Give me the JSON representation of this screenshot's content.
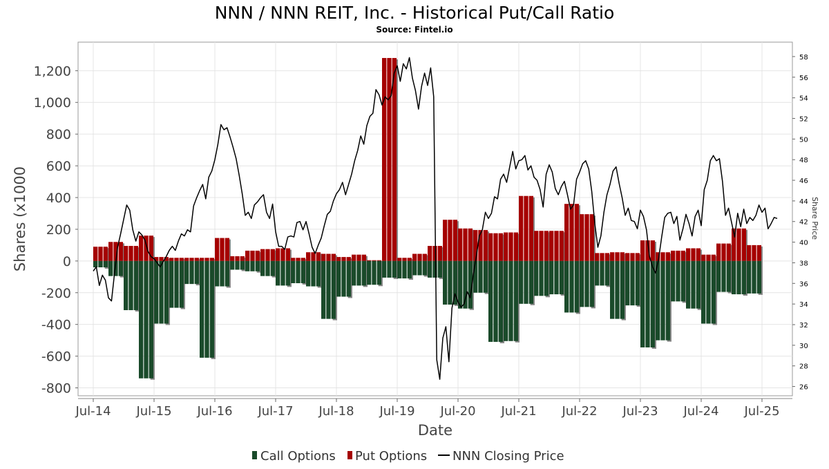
{
  "chart_data": {
    "type": "bar",
    "title": "NNN / NNN REIT, Inc. - Historical Put/Call Ratio",
    "subtitle": "Source: Fintel.io",
    "xlabel": "Date",
    "ylabel": "Shares (x1000",
    "y2label": "Share Price",
    "ylim": [
      -850,
      1380
    ],
    "y2lim": [
      25.1,
      59.4
    ],
    "xlim": [
      2014.25,
      2026.0
    ],
    "yticks": [
      "1,200",
      "1,000",
      "800",
      "600",
      "400",
      "200",
      "0",
      "-200",
      "-400",
      "-600",
      "-800"
    ],
    "ytick_values": [
      1200,
      1000,
      800,
      600,
      400,
      200,
      0,
      -200,
      -400,
      -600,
      -800
    ],
    "y2ticks": [
      "58",
      "56",
      "54",
      "52",
      "50",
      "48",
      "46",
      "44",
      "42",
      "40",
      "38",
      "36",
      "34",
      "32",
      "30",
      "28",
      "26"
    ],
    "y2tick_values": [
      58,
      56,
      54,
      52,
      50,
      48,
      46,
      44,
      42,
      40,
      38,
      36,
      34,
      32,
      30,
      28,
      26
    ],
    "xticks": [
      "Jul-14",
      "Jul-15",
      "Jul-16",
      "Jul-17",
      "Jul-18",
      "Jul-19",
      "Jul-20",
      "Jul-21",
      "Jul-22",
      "Jul-23",
      "Jul-24",
      "Jul-25"
    ],
    "xtick_values": [
      2014.5,
      2015.5,
      2016.5,
      2017.5,
      2018.5,
      2019.5,
      2020.5,
      2021.5,
      2022.5,
      2023.5,
      2024.5,
      2025.5
    ],
    "grid": true,
    "legend_position": "bottom",
    "colors": {
      "call": "#1a4a2a",
      "put": "#a50000",
      "price": "#000000",
      "shadow": "#888888"
    },
    "series": [
      {
        "name": "Call Options",
        "key": "call"
      },
      {
        "name": "Put Options",
        "key": "put"
      },
      {
        "name": "NNN Closing Price",
        "key": "price"
      }
    ],
    "option_periods": [
      {
        "start": 2014.5,
        "end": 2014.75,
        "put": 90,
        "call": -40
      },
      {
        "start": 2014.75,
        "end": 2015.0,
        "put": 120,
        "call": -95
      },
      {
        "start": 2015.0,
        "end": 2015.25,
        "put": 95,
        "call": -310
      },
      {
        "start": 2015.25,
        "end": 2015.5,
        "put": 160,
        "call": -740
      },
      {
        "start": 2015.5,
        "end": 2015.75,
        "put": 25,
        "call": -395
      },
      {
        "start": 2015.75,
        "end": 2016.0,
        "put": 20,
        "call": -295
      },
      {
        "start": 2016.0,
        "end": 2016.25,
        "put": 20,
        "call": -145
      },
      {
        "start": 2016.25,
        "end": 2016.5,
        "put": 20,
        "call": -610
      },
      {
        "start": 2016.5,
        "end": 2016.75,
        "put": 145,
        "call": -160
      },
      {
        "start": 2016.75,
        "end": 2017.0,
        "put": 30,
        "call": -55
      },
      {
        "start": 2017.0,
        "end": 2017.25,
        "put": 65,
        "call": -65
      },
      {
        "start": 2017.25,
        "end": 2017.5,
        "put": 75,
        "call": -95
      },
      {
        "start": 2017.5,
        "end": 2017.75,
        "put": 80,
        "call": -155
      },
      {
        "start": 2017.75,
        "end": 2018.0,
        "put": 20,
        "call": -140
      },
      {
        "start": 2018.0,
        "end": 2018.25,
        "put": 55,
        "call": -160
      },
      {
        "start": 2018.25,
        "end": 2018.5,
        "put": 45,
        "call": -365
      },
      {
        "start": 2018.5,
        "end": 2018.75,
        "put": 25,
        "call": -225
      },
      {
        "start": 2018.75,
        "end": 2019.0,
        "put": 40,
        "call": -155
      },
      {
        "start": 2019.0,
        "end": 2019.25,
        "put": 5,
        "call": -150
      },
      {
        "start": 2019.25,
        "end": 2019.5,
        "put": 1280,
        "call": -105
      },
      {
        "start": 2019.5,
        "end": 2019.75,
        "put": 20,
        "call": -110
      },
      {
        "start": 2019.75,
        "end": 2020.0,
        "put": 45,
        "call": -90
      },
      {
        "start": 2020.0,
        "end": 2020.25,
        "put": 95,
        "call": -105
      },
      {
        "start": 2020.25,
        "end": 2020.5,
        "put": 260,
        "call": -275
      },
      {
        "start": 2020.5,
        "end": 2020.75,
        "put": 205,
        "call": -300
      },
      {
        "start": 2020.75,
        "end": 2021.0,
        "put": 195,
        "call": -200
      },
      {
        "start": 2021.0,
        "end": 2021.25,
        "put": 175,
        "call": -510
      },
      {
        "start": 2021.25,
        "end": 2021.5,
        "put": 180,
        "call": -505
      },
      {
        "start": 2021.5,
        "end": 2021.75,
        "put": 410,
        "call": -270
      },
      {
        "start": 2021.75,
        "end": 2022.0,
        "put": 190,
        "call": -220
      },
      {
        "start": 2022.0,
        "end": 2022.25,
        "put": 190,
        "call": -210
      },
      {
        "start": 2022.25,
        "end": 2022.5,
        "put": 360,
        "call": -325
      },
      {
        "start": 2022.5,
        "end": 2022.75,
        "put": 295,
        "call": -290
      },
      {
        "start": 2022.75,
        "end": 2023.0,
        "put": 50,
        "call": -155
      },
      {
        "start": 2023.0,
        "end": 2023.25,
        "put": 55,
        "call": -365
      },
      {
        "start": 2023.25,
        "end": 2023.5,
        "put": 50,
        "call": -280
      },
      {
        "start": 2023.5,
        "end": 2023.75,
        "put": 130,
        "call": -545
      },
      {
        "start": 2023.75,
        "end": 2024.0,
        "put": 55,
        "call": -500
      },
      {
        "start": 2024.0,
        "end": 2024.25,
        "put": 65,
        "call": -255
      },
      {
        "start": 2024.25,
        "end": 2024.5,
        "put": 80,
        "call": -300
      },
      {
        "start": 2024.5,
        "end": 2024.75,
        "put": 40,
        "call": -395
      },
      {
        "start": 2024.75,
        "end": 2025.0,
        "put": 110,
        "call": -195
      },
      {
        "start": 2025.0,
        "end": 2025.25,
        "put": 205,
        "call": -210
      },
      {
        "start": 2025.25,
        "end": 2025.5,
        "put": 100,
        "call": -205
      }
    ],
    "price": [
      [
        2014.5,
        37.2
      ],
      [
        2014.55,
        37.6
      ],
      [
        2014.6,
        35.8
      ],
      [
        2014.65,
        36.8
      ],
      [
        2014.7,
        36.3
      ],
      [
        2014.75,
        34.6
      ],
      [
        2014.8,
        34.3
      ],
      [
        2014.85,
        37.0
      ],
      [
        2014.9,
        39.5
      ],
      [
        2014.95,
        40.8
      ],
      [
        2015.0,
        42.2
      ],
      [
        2015.05,
        43.6
      ],
      [
        2015.1,
        43.1
      ],
      [
        2015.15,
        41.2
      ],
      [
        2015.2,
        40.1
      ],
      [
        2015.25,
        41.0
      ],
      [
        2015.3,
        40.7
      ],
      [
        2015.35,
        40.2
      ],
      [
        2015.4,
        39.1
      ],
      [
        2015.45,
        38.6
      ],
      [
        2015.5,
        38.4
      ],
      [
        2015.55,
        38.0
      ],
      [
        2015.6,
        37.6
      ],
      [
        2015.65,
        38.1
      ],
      [
        2015.7,
        38.6
      ],
      [
        2015.75,
        39.2
      ],
      [
        2015.8,
        39.6
      ],
      [
        2015.85,
        39.2
      ],
      [
        2015.9,
        40.1
      ],
      [
        2015.95,
        40.8
      ],
      [
        2016.0,
        40.6
      ],
      [
        2016.05,
        41.2
      ],
      [
        2016.1,
        41.0
      ],
      [
        2016.15,
        43.5
      ],
      [
        2016.2,
        44.3
      ],
      [
        2016.25,
        45.0
      ],
      [
        2016.3,
        45.6
      ],
      [
        2016.35,
        44.2
      ],
      [
        2016.4,
        46.3
      ],
      [
        2016.45,
        46.9
      ],
      [
        2016.5,
        48.0
      ],
      [
        2016.55,
        49.5
      ],
      [
        2016.6,
        51.4
      ],
      [
        2016.65,
        50.9
      ],
      [
        2016.7,
        51.1
      ],
      [
        2016.75,
        50.2
      ],
      [
        2016.8,
        49.2
      ],
      [
        2016.85,
        48.1
      ],
      [
        2016.9,
        46.5
      ],
      [
        2016.95,
        44.7
      ],
      [
        2017.0,
        42.6
      ],
      [
        2017.05,
        42.9
      ],
      [
        2017.1,
        42.3
      ],
      [
        2017.15,
        43.6
      ],
      [
        2017.2,
        43.9
      ],
      [
        2017.25,
        44.3
      ],
      [
        2017.3,
        44.6
      ],
      [
        2017.35,
        42.9
      ],
      [
        2017.4,
        42.3
      ],
      [
        2017.45,
        43.7
      ],
      [
        2017.5,
        41.0
      ],
      [
        2017.55,
        39.6
      ],
      [
        2017.6,
        39.6
      ],
      [
        2017.65,
        39.3
      ],
      [
        2017.7,
        40.5
      ],
      [
        2017.75,
        40.6
      ],
      [
        2017.8,
        40.5
      ],
      [
        2017.85,
        41.9
      ],
      [
        2017.9,
        42.0
      ],
      [
        2017.95,
        41.2
      ],
      [
        2018.0,
        42.0
      ],
      [
        2018.05,
        40.8
      ],
      [
        2018.1,
        39.5
      ],
      [
        2018.15,
        38.9
      ],
      [
        2018.2,
        39.7
      ],
      [
        2018.25,
        40.4
      ],
      [
        2018.3,
        41.6
      ],
      [
        2018.35,
        42.7
      ],
      [
        2018.4,
        43.0
      ],
      [
        2018.45,
        44.0
      ],
      [
        2018.5,
        44.7
      ],
      [
        2018.55,
        45.1
      ],
      [
        2018.6,
        45.8
      ],
      [
        2018.65,
        44.6
      ],
      [
        2018.7,
        45.6
      ],
      [
        2018.75,
        46.6
      ],
      [
        2018.8,
        47.9
      ],
      [
        2018.85,
        48.9
      ],
      [
        2018.9,
        50.3
      ],
      [
        2018.95,
        49.5
      ],
      [
        2019.0,
        51.3
      ],
      [
        2019.05,
        52.2
      ],
      [
        2019.1,
        52.5
      ],
      [
        2019.15,
        54.8
      ],
      [
        2019.2,
        54.3
      ],
      [
        2019.25,
        53.3
      ],
      [
        2019.3,
        54.1
      ],
      [
        2019.35,
        53.8
      ],
      [
        2019.4,
        54.2
      ],
      [
        2019.45,
        56.4
      ],
      [
        2019.5,
        57.1
      ],
      [
        2019.55,
        55.6
      ],
      [
        2019.6,
        57.3
      ],
      [
        2019.65,
        56.8
      ],
      [
        2019.7,
        57.9
      ],
      [
        2019.75,
        55.9
      ],
      [
        2019.8,
        54.7
      ],
      [
        2019.85,
        52.9
      ],
      [
        2019.9,
        55.1
      ],
      [
        2019.95,
        56.4
      ],
      [
        2020.0,
        55.2
      ],
      [
        2020.05,
        56.9
      ],
      [
        2020.1,
        54.1
      ],
      [
        2020.15,
        28.6
      ],
      [
        2020.2,
        26.7
      ],
      [
        2020.25,
        30.7
      ],
      [
        2020.3,
        31.8
      ],
      [
        2020.35,
        28.4
      ],
      [
        2020.4,
        33.6
      ],
      [
        2020.45,
        35.0
      ],
      [
        2020.5,
        34.2
      ],
      [
        2020.55,
        33.7
      ],
      [
        2020.6,
        34.0
      ],
      [
        2020.65,
        35.2
      ],
      [
        2020.7,
        34.6
      ],
      [
        2020.75,
        36.8
      ],
      [
        2020.8,
        38.6
      ],
      [
        2020.85,
        40.6
      ],
      [
        2020.9,
        41.2
      ],
      [
        2020.95,
        42.9
      ],
      [
        2021.0,
        42.3
      ],
      [
        2021.05,
        42.8
      ],
      [
        2021.1,
        44.4
      ],
      [
        2021.15,
        44.2
      ],
      [
        2021.2,
        46.1
      ],
      [
        2021.25,
        46.6
      ],
      [
        2021.3,
        45.8
      ],
      [
        2021.35,
        47.3
      ],
      [
        2021.4,
        48.8
      ],
      [
        2021.45,
        47.1
      ],
      [
        2021.5,
        47.9
      ],
      [
        2021.55,
        48.0
      ],
      [
        2021.6,
        48.4
      ],
      [
        2021.65,
        47.0
      ],
      [
        2021.7,
        47.4
      ],
      [
        2021.75,
        46.3
      ],
      [
        2021.8,
        46.0
      ],
      [
        2021.85,
        45.1
      ],
      [
        2021.9,
        43.4
      ],
      [
        2021.95,
        46.6
      ],
      [
        2022.0,
        47.5
      ],
      [
        2022.05,
        46.8
      ],
      [
        2022.1,
        45.2
      ],
      [
        2022.15,
        44.6
      ],
      [
        2022.2,
        45.4
      ],
      [
        2022.25,
        45.9
      ],
      [
        2022.3,
        44.6
      ],
      [
        2022.35,
        43.2
      ],
      [
        2022.4,
        43.6
      ],
      [
        2022.45,
        46.1
      ],
      [
        2022.5,
        46.8
      ],
      [
        2022.55,
        47.6
      ],
      [
        2022.6,
        47.9
      ],
      [
        2022.65,
        47.1
      ],
      [
        2022.7,
        44.9
      ],
      [
        2022.75,
        41.8
      ],
      [
        2022.8,
        39.5
      ],
      [
        2022.85,
        40.6
      ],
      [
        2022.9,
        42.9
      ],
      [
        2022.95,
        44.6
      ],
      [
        2023.0,
        45.6
      ],
      [
        2023.05,
        46.9
      ],
      [
        2023.1,
        47.3
      ],
      [
        2023.15,
        45.7
      ],
      [
        2023.2,
        44.3
      ],
      [
        2023.25,
        42.6
      ],
      [
        2023.3,
        43.3
      ],
      [
        2023.35,
        42.1
      ],
      [
        2023.4,
        42.0
      ],
      [
        2023.45,
        41.3
      ],
      [
        2023.5,
        43.1
      ],
      [
        2023.55,
        42.5
      ],
      [
        2023.6,
        41.2
      ],
      [
        2023.65,
        38.6
      ],
      [
        2023.7,
        37.6
      ],
      [
        2023.75,
        37.0
      ],
      [
        2023.8,
        38.4
      ],
      [
        2023.85,
        40.5
      ],
      [
        2023.9,
        42.4
      ],
      [
        2023.95,
        42.8
      ],
      [
        2024.0,
        42.9
      ],
      [
        2024.05,
        41.8
      ],
      [
        2024.1,
        42.5
      ],
      [
        2024.15,
        40.2
      ],
      [
        2024.2,
        41.3
      ],
      [
        2024.25,
        42.7
      ],
      [
        2024.3,
        41.8
      ],
      [
        2024.35,
        40.6
      ],
      [
        2024.4,
        42.5
      ],
      [
        2024.45,
        43.1
      ],
      [
        2024.5,
        41.6
      ],
      [
        2024.55,
        45.1
      ],
      [
        2024.6,
        46.0
      ],
      [
        2024.65,
        47.9
      ],
      [
        2024.7,
        48.4
      ],
      [
        2024.75,
        47.9
      ],
      [
        2024.8,
        48.1
      ],
      [
        2024.85,
        45.9
      ],
      [
        2024.9,
        42.6
      ],
      [
        2024.95,
        43.3
      ],
      [
        2025.0,
        41.9
      ],
      [
        2025.05,
        40.5
      ],
      [
        2025.1,
        42.8
      ],
      [
        2025.15,
        41.5
      ],
      [
        2025.2,
        43.2
      ],
      [
        2025.25,
        41.8
      ],
      [
        2025.3,
        42.4
      ],
      [
        2025.35,
        42.1
      ],
      [
        2025.4,
        42.6
      ],
      [
        2025.45,
        43.6
      ],
      [
        2025.5,
        42.9
      ],
      [
        2025.55,
        43.3
      ],
      [
        2025.6,
        41.3
      ],
      [
        2025.65,
        41.8
      ],
      [
        2025.7,
        42.4
      ],
      [
        2025.75,
        42.3
      ]
    ]
  }
}
